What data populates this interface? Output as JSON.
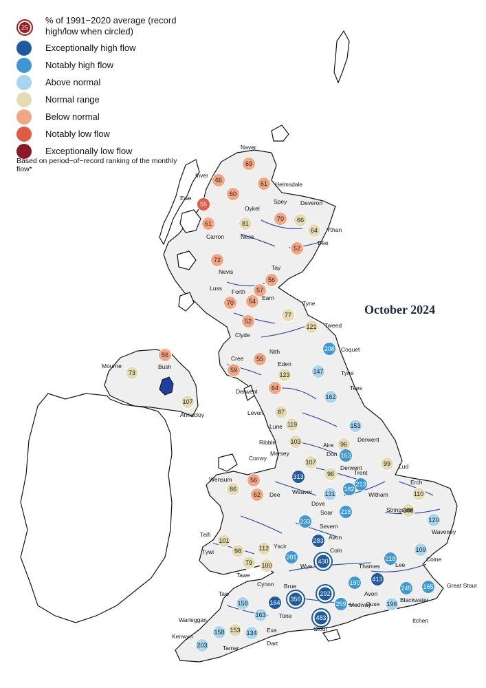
{
  "title": "October 2024",
  "legend": {
    "circle_example_value": "25",
    "items": [
      {
        "label": "% of 1991−2020 average (record high/low when circled)",
        "color": "#9b1b1b"
      },
      {
        "label": "Exceptionally high flow",
        "color": "#1f5aa0"
      },
      {
        "label": "Notably high flow",
        "color": "#3f97d6"
      },
      {
        "label": "Above normal",
        "color": "#a8d6ee"
      },
      {
        "label": "Normal range",
        "color": "#e3dcb4"
      },
      {
        "label": "Below normal",
        "color": "#f3a683"
      },
      {
        "label": "Notably low flow",
        "color": "#e05a45"
      },
      {
        "label": "Exceptionally low flow",
        "color": "#8c1a26"
      }
    ],
    "note": "Based on period−of−record ranking of the monthly flow*"
  },
  "sites": [
    {
      "name": "Naver",
      "value": "69",
      "cat": "below"
    },
    {
      "name": "Inver",
      "value": "66",
      "cat": "below"
    },
    {
      "name": "Helmsdale",
      "value": "61",
      "cat": "below"
    },
    {
      "name": "Oykel",
      "value": "60",
      "cat": "below"
    },
    {
      "name": "Ewe",
      "value": "55",
      "cat": "notlow"
    },
    {
      "name": "Carron",
      "value": "61",
      "cat": "below"
    },
    {
      "name": "Ness",
      "value": "81",
      "cat": "normal"
    },
    {
      "name": "Spey",
      "value": "70",
      "cat": "below"
    },
    {
      "name": "Deveron",
      "value": "66",
      "cat": "normal"
    },
    {
      "name": "Ythan",
      "value": "64",
      "cat": "normal"
    },
    {
      "name": "Dee",
      "value": "52",
      "cat": "below"
    },
    {
      "name": "Nevis",
      "value": "72",
      "cat": "below"
    },
    {
      "name": "Tay",
      "value": "56",
      "cat": "below"
    },
    {
      "name": "Forth",
      "value": "57",
      "cat": "below"
    },
    {
      "name": "Luss",
      "value": "70",
      "cat": "below"
    },
    {
      "name": "Earn",
      "value": "54",
      "cat": "below"
    },
    {
      "name": "Tyne",
      "value": "77",
      "cat": "normal"
    },
    {
      "name": "Tweed",
      "value": "121",
      "cat": "normal"
    },
    {
      "name": "Clyde",
      "value": "52",
      "cat": "below"
    },
    {
      "name": "Coquet",
      "value": "208",
      "cat": "notable"
    },
    {
      "name": "Bush",
      "value": "56",
      "cat": "below"
    },
    {
      "name": "Mourne",
      "value": "73",
      "cat": "normal"
    },
    {
      "name": "Cree",
      "value": "59",
      "cat": "below"
    },
    {
      "name": "Nith",
      "value": "55",
      "cat": "below"
    },
    {
      "name": "Eden",
      "value": "123",
      "cat": "normal"
    },
    {
      "name": "Tyne",
      "value": "147",
      "cat": "above"
    },
    {
      "name": "Derwent",
      "value": "64",
      "cat": "below"
    },
    {
      "name": "Annacloy",
      "value": "107",
      "cat": "normal"
    },
    {
      "name": "Tees",
      "value": "162",
      "cat": "above"
    },
    {
      "name": "Leven",
      "value": "87",
      "cat": "normal"
    },
    {
      "name": "Lune",
      "value": "119",
      "cat": "normal"
    },
    {
      "name": "Derwent",
      "value": "153",
      "cat": "above"
    },
    {
      "name": "Ribble",
      "value": "103",
      "cat": "normal"
    },
    {
      "name": "Aire",
      "value": "96",
      "cat": "normal"
    },
    {
      "name": "Don",
      "value": "163",
      "cat": "notable"
    },
    {
      "name": "Lud",
      "value": "99",
      "cat": "normal"
    },
    {
      "name": "Mersey",
      "value": "107",
      "cat": "normal"
    },
    {
      "name": "Derwent",
      "value": "96",
      "cat": "normal"
    },
    {
      "name": "Conwy",
      "value": "56",
      "cat": "below"
    },
    {
      "name": "Weaver",
      "value": "313",
      "cat": "exceptional"
    },
    {
      "name": "Trent",
      "value": "213",
      "cat": "notable"
    },
    {
      "name": "Witham",
      "value": "182",
      "cat": "notable"
    },
    {
      "name": "Wensum",
      "value": "110",
      "cat": "normal"
    },
    {
      "name": "Erch",
      "value": "86",
      "cat": "normal"
    },
    {
      "name": "Dee",
      "value": "62",
      "cat": "below"
    },
    {
      "name": "Dove",
      "value": "131",
      "cat": "above"
    },
    {
      "name": "Soar",
      "value": "218",
      "cat": "notable"
    },
    {
      "name": "Stringside",
      "value": "108",
      "cat": "normal"
    },
    {
      "name": "Severn",
      "value": "233",
      "cat": "notable"
    },
    {
      "name": "Waveney",
      "value": "120",
      "cat": "above"
    },
    {
      "name": "Teifi",
      "value": "101",
      "cat": "normal"
    },
    {
      "name": "Avon",
      "value": "283",
      "cat": "exceptional"
    },
    {
      "name": "Yscir",
      "value": "112",
      "cat": "normal"
    },
    {
      "name": "Tywi",
      "value": "98",
      "cat": "normal"
    },
    {
      "name": "Wye",
      "value": "201",
      "cat": "notable"
    },
    {
      "name": "Coln",
      "value": "430",
      "cat": "exceptional",
      "record": true
    },
    {
      "name": "Colne",
      "value": "109",
      "cat": "above"
    },
    {
      "name": "Lee",
      "value": "218",
      "cat": "notable"
    },
    {
      "name": "Tawe",
      "value": "79",
      "cat": "normal"
    },
    {
      "name": "Cynon",
      "value": "100",
      "cat": "normal"
    },
    {
      "name": "Thames",
      "value": "413",
      "cat": "exceptional"
    },
    {
      "name": "Blackwater",
      "value": "190",
      "cat": "notable"
    },
    {
      "name": "Great Stour",
      "value": "165",
      "cat": "notable"
    },
    {
      "name": "Medway",
      "value": "245",
      "cat": "notable"
    },
    {
      "name": "Brue",
      "value": "356",
      "cat": "exceptional",
      "record": true
    },
    {
      "name": "Avon",
      "value": "292",
      "cat": "exceptional",
      "record": true
    },
    {
      "name": "Taw",
      "value": "158",
      "cat": "above"
    },
    {
      "name": "Tone",
      "value": "259",
      "cat": "notable"
    },
    {
      "name": "Itchen",
      "value": "164",
      "cat": "exceptional"
    },
    {
      "name": "Ouse",
      "value": "196",
      "cat": "above"
    },
    {
      "name": "Torridge",
      "value": "163",
      "cat": "above"
    },
    {
      "name": "Stour",
      "value": "483",
      "cat": "exceptional",
      "record": true
    },
    {
      "name": "Warleggan",
      "value": "158",
      "cat": "above"
    },
    {
      "name": "Tamar",
      "value": "153",
      "cat": "normal"
    },
    {
      "name": "Exe",
      "value": "134",
      "cat": "above"
    },
    {
      "name": "Kenwyn",
      "value": "203",
      "cat": "above"
    },
    {
      "name": "Dart",
      "value": "",
      "cat": "none"
    }
  ],
  "river_labels": [
    "Naver",
    "Inver",
    "Helmsdale",
    "Ewe",
    "Oykel",
    "Spey",
    "Deveron",
    "Ythan",
    "Carron",
    "Ness",
    "Dee",
    "Nevis",
    "Tay",
    "Luss",
    "Forth",
    "Earn",
    "Tyne",
    "Tweed",
    "Clyde",
    "Coquet",
    "Mourne",
    "Bush",
    "Cree",
    "Nith",
    "Eden",
    "Tyne",
    "Derwent",
    "Annacloy",
    "Tees",
    "Leven",
    "Lune",
    "Derwent",
    "Ribble",
    "Aire",
    "Don",
    "Mersey",
    "Lud",
    "Conwy",
    "Derwent",
    "Wensum",
    "Erch",
    "Weaver",
    "Trent",
    "Dee",
    "Witham",
    "Dove",
    "Soar",
    "Stringside",
    "Severn",
    "Waveney",
    "Teifi",
    "Avon",
    "Yscir",
    "Colne",
    "Tywi",
    "Coln",
    "Lee",
    "Wye",
    "Tawe",
    "Thames",
    "Cynon",
    "Great Stour",
    "Brue",
    "Avon",
    "Blackwater",
    "Medway",
    "Taw",
    "Itchen",
    "Tone",
    "Ouse",
    "Stour",
    "Warleggan",
    "Exe",
    "Kenwyn",
    "Dart",
    "Tamar"
  ],
  "colors": {
    "exceptional": "#1f5aa0",
    "notable": "#3f97d6",
    "above": "#a8d6ee",
    "normal": "#e3dcb4",
    "below": "#f3a683",
    "notlow": "#e05a45",
    "exlow": "#8c1a26",
    "land": "#efefef",
    "coast": "#111111",
    "river": "#1d3f9e"
  }
}
